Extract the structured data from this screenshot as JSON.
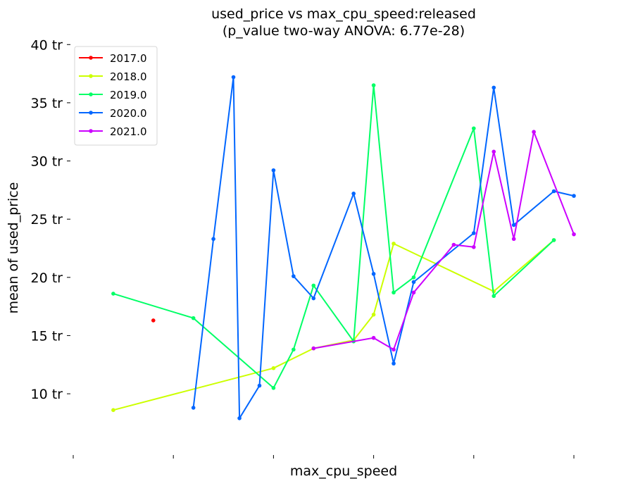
{
  "chart_data": {
    "type": "line",
    "title": "used_price vs max_cpu_speed:released",
    "subtitle": "(p_value two-way ANOVA: 6.77e-28)",
    "xlabel": "max_cpu_speed",
    "ylabel": "mean of used_price",
    "ylim": [
      4.8,
      40.5
    ],
    "xlim": [
      0,
      25
    ],
    "yticks": [
      10,
      15,
      20,
      25,
      30,
      35,
      40
    ],
    "ytick_labels": [
      "10 tr",
      "15 tr",
      "20 tr",
      "25 tr",
      "30 tr",
      "35 tr",
      "40 tr"
    ],
    "xticks": [
      0,
      5,
      10,
      15,
      20,
      25
    ],
    "xtick_labels": [
      "",
      "",
      "",
      "",
      "",
      ""
    ],
    "grid": false,
    "legend_position": "top-left",
    "series": [
      {
        "name": "2017.0",
        "color": "#ff0000",
        "points": [
          [
            4,
            16.3
          ]
        ]
      },
      {
        "name": "2018.0",
        "color": "#ccff00",
        "points": [
          [
            2,
            8.6
          ],
          [
            10,
            12.2
          ],
          [
            12,
            13.9
          ],
          [
            14,
            14.6
          ],
          [
            15,
            16.8
          ],
          [
            16,
            22.9
          ],
          [
            21,
            18.8
          ],
          [
            24,
            23.2
          ]
        ]
      },
      {
        "name": "2019.0",
        "color": "#00ff66",
        "points": [
          [
            2,
            18.6
          ],
          [
            6,
            16.5
          ],
          [
            10,
            10.5
          ],
          [
            11,
            13.8
          ],
          [
            12,
            19.3
          ],
          [
            14,
            14.5
          ],
          [
            15,
            36.5
          ],
          [
            16,
            18.7
          ],
          [
            17,
            20.0
          ],
          [
            20,
            32.8
          ],
          [
            21,
            18.4
          ],
          [
            24,
            23.2
          ]
        ]
      },
      {
        "name": "2020.0",
        "color": "#0066ff",
        "points": [
          [
            6,
            8.8
          ],
          [
            7,
            23.3
          ],
          [
            8,
            37.2
          ],
          [
            8.3,
            7.9
          ],
          [
            9.3,
            10.7
          ],
          [
            10,
            29.2
          ],
          [
            11,
            20.1
          ],
          [
            12,
            18.2
          ],
          [
            14,
            27.2
          ],
          [
            15,
            20.3
          ],
          [
            16,
            12.6
          ],
          [
            17,
            19.6
          ],
          [
            20,
            23.8
          ],
          [
            21,
            36.3
          ],
          [
            22,
            24.5
          ],
          [
            24,
            27.4
          ],
          [
            25,
            27.0
          ]
        ]
      },
      {
        "name": "2021.0",
        "color": "#cc00ff",
        "points": [
          [
            12,
            13.9
          ],
          [
            15,
            14.8
          ],
          [
            16,
            13.8
          ],
          [
            17,
            18.7
          ],
          [
            19,
            22.8
          ],
          [
            20,
            22.6
          ],
          [
            21,
            30.8
          ],
          [
            22,
            23.3
          ],
          [
            23,
            32.5
          ],
          [
            25,
            23.7
          ]
        ]
      }
    ]
  }
}
